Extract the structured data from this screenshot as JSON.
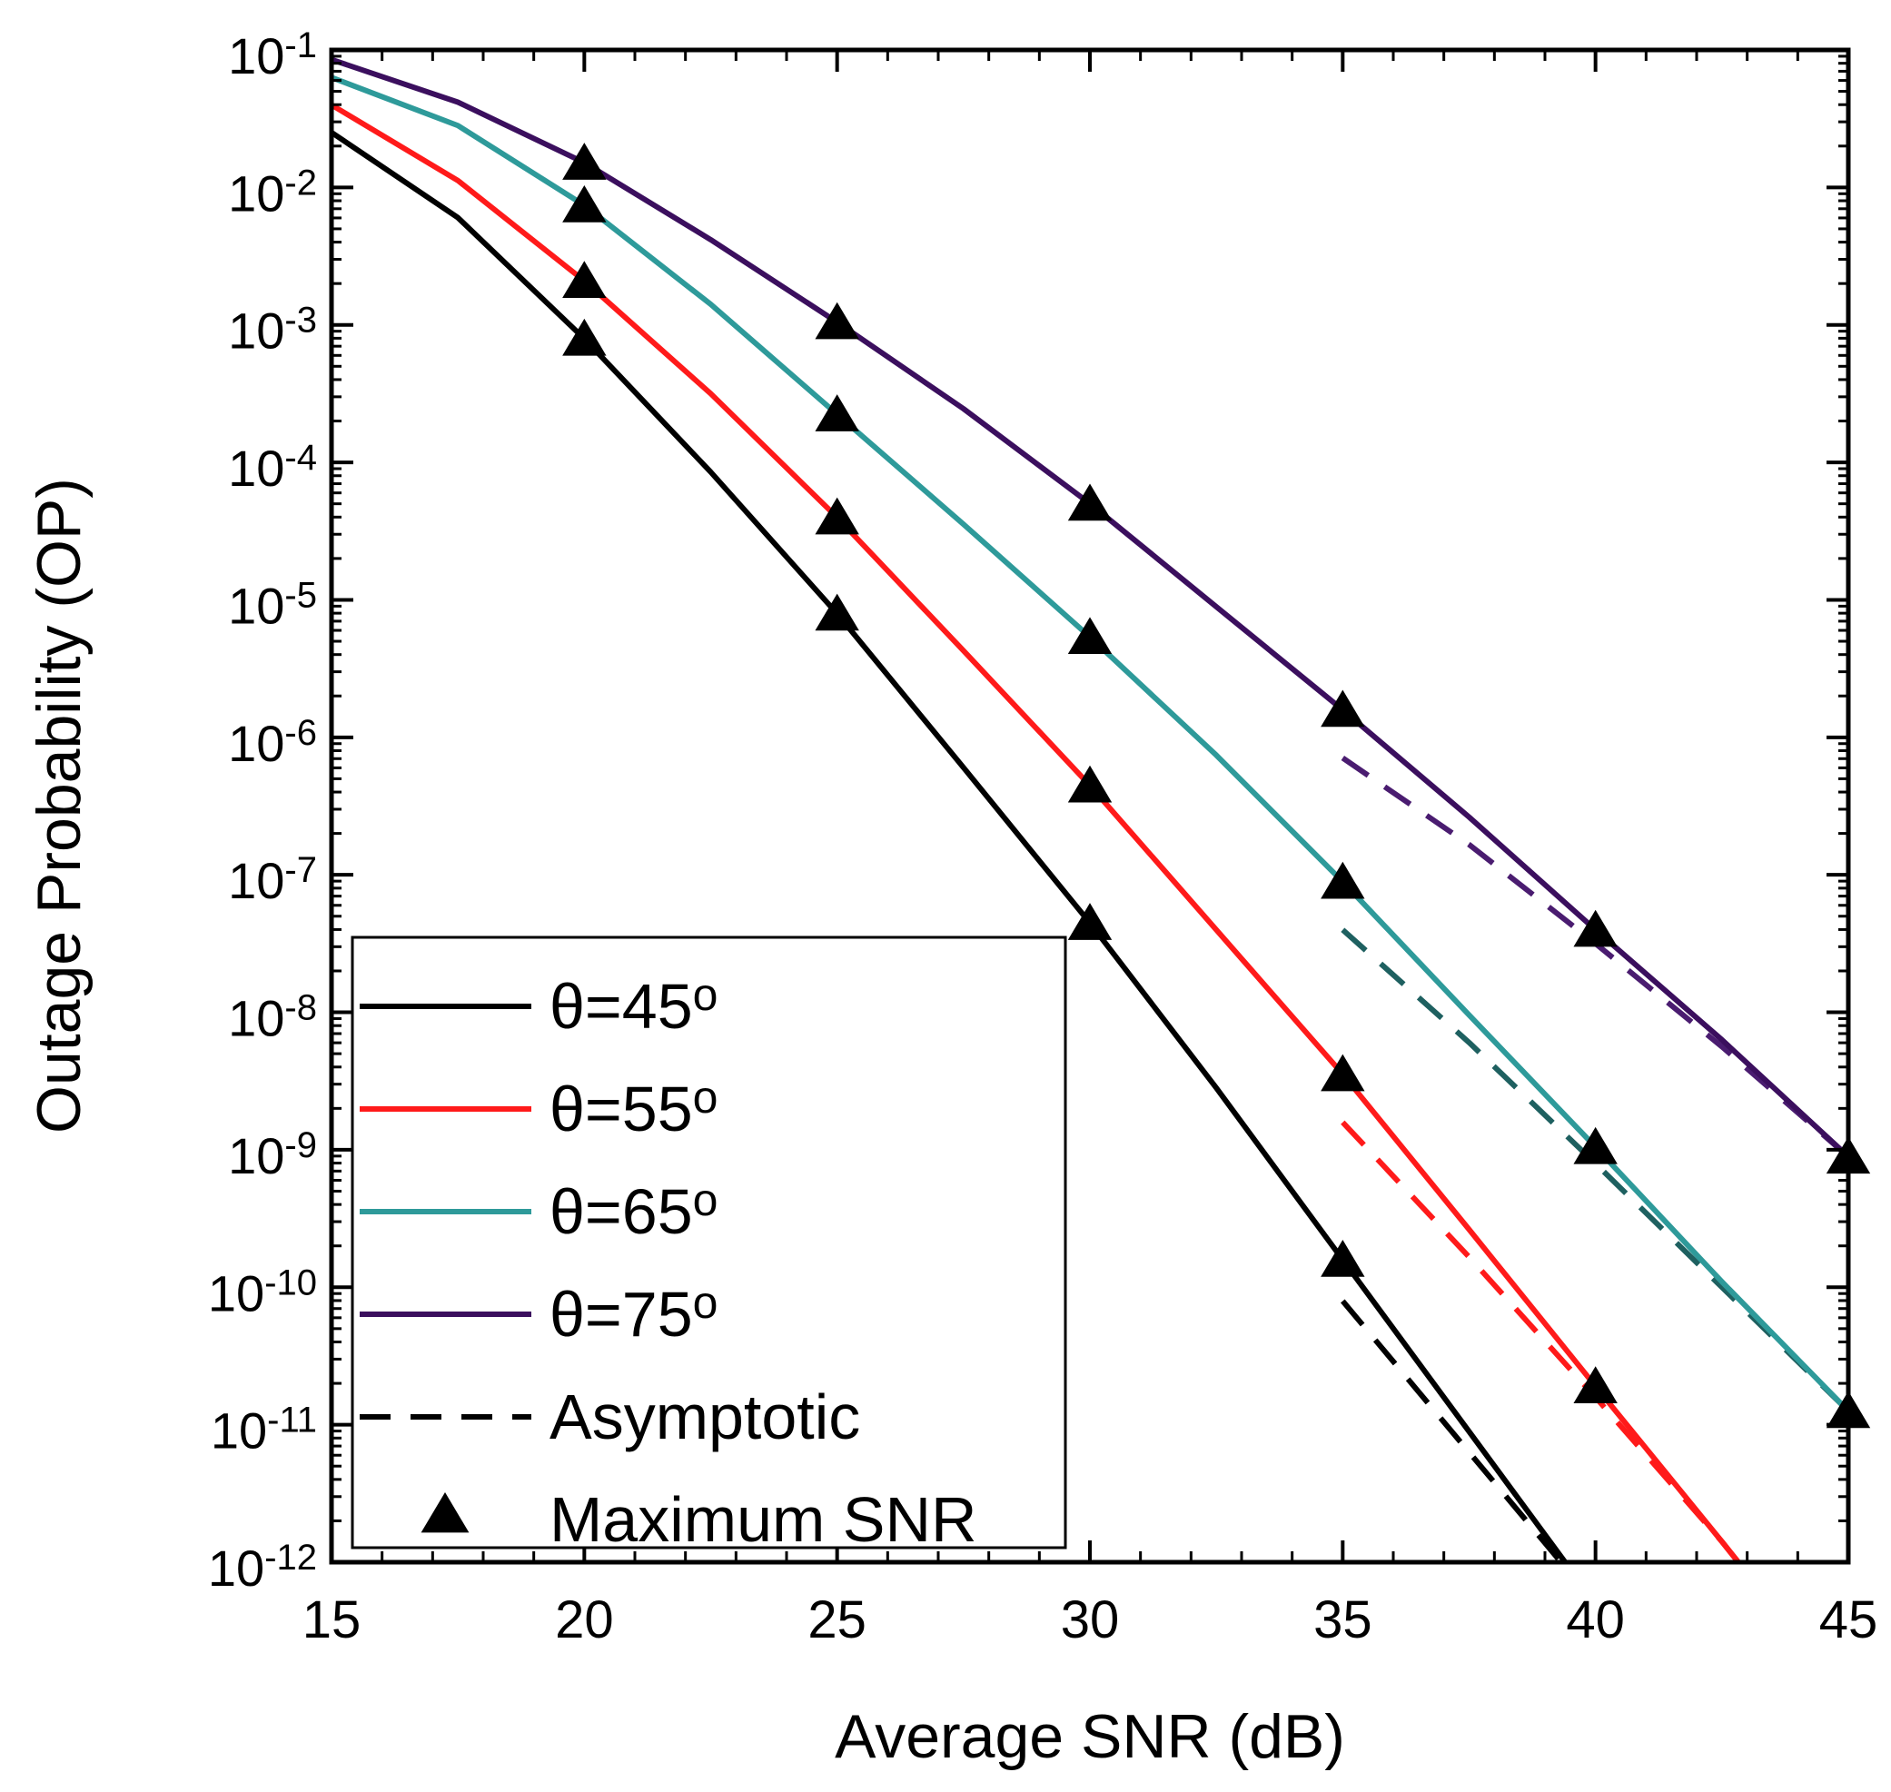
{
  "chart_data": {
    "type": "line",
    "title": "",
    "xlabel": "Average SNR (dB)",
    "ylabel": "Outage Probability (OP)",
    "xlim": [
      15,
      45
    ],
    "ylim_log10": [
      -12,
      -1
    ],
    "y_scale": "log",
    "x_ticks": [
      15,
      20,
      25,
      30,
      35,
      40,
      45
    ],
    "x_tick_labels": [
      "15",
      "20",
      "25",
      "30",
      "35",
      "40",
      "45"
    ],
    "y_ticks_exponent": [
      -1,
      -2,
      -3,
      -4,
      -5,
      -6,
      -7,
      -8,
      -9,
      -10,
      -11,
      -12
    ],
    "y_tick_base": "10",
    "y_tick_exponent_labels": [
      "-1",
      "-2",
      "-3",
      "-4",
      "-5",
      "-6",
      "-7",
      "-8",
      "-9",
      "-10",
      "-11",
      "-12"
    ],
    "grid": false,
    "legend_position": "bottom-left",
    "legend": [
      {
        "label": "θ=45",
        "sup": "o",
        "style": "solid",
        "color": "#000000"
      },
      {
        "label": "θ=55",
        "sup": "o",
        "style": "solid",
        "color": "#ff1a1a"
      },
      {
        "label": "θ=65",
        "sup": "o",
        "style": "solid",
        "color": "#2e9a9a"
      },
      {
        "label": "θ=75",
        "sup": "o",
        "style": "solid",
        "color": "#3b0f5e"
      },
      {
        "label": "Asymptotic",
        "style": "dashed",
        "color": "#000000"
      },
      {
        "label": "Maximum SNR",
        "style": "marker",
        "color": "#000000"
      }
    ],
    "series": [
      {
        "name": "θ=45°",
        "color": "#000000",
        "x": [
          15,
          17.5,
          20,
          22.5,
          25,
          27.5,
          30,
          32.5,
          35,
          37.5,
          40
        ],
        "log10_y": [
          -1.6,
          -2.22,
          -3.1,
          -4.07,
          -5.1,
          -6.22,
          -7.35,
          -8.55,
          -9.8,
          -11.05,
          -12.3
        ],
        "markers_x": [
          20,
          25,
          30,
          35
        ],
        "markers_log10_y": [
          -3.1,
          -5.1,
          -7.35,
          -9.8
        ]
      },
      {
        "name": "θ=55°",
        "color": "#ff1a1a",
        "x": [
          15,
          17.5,
          20,
          22.5,
          25,
          27.5,
          30,
          32.5,
          35,
          37.5,
          40,
          42.5,
          43
        ],
        "log10_y": [
          -1.4,
          -1.95,
          -2.68,
          -3.5,
          -4.4,
          -5.37,
          -6.35,
          -7.4,
          -8.45,
          -9.58,
          -10.72,
          -11.85,
          -12.08
        ],
        "markers_x": [
          20,
          25,
          30,
          35,
          40
        ],
        "markers_log10_y": [
          -2.68,
          -4.4,
          -6.35,
          -8.45,
          -10.72
        ]
      },
      {
        "name": "θ=65°",
        "color": "#2e9a9a",
        "x": [
          15,
          17.5,
          20,
          22.5,
          25,
          27.5,
          30,
          32.5,
          35,
          37.5,
          40,
          42.5,
          45
        ],
        "log10_y": [
          -1.2,
          -1.55,
          -2.13,
          -2.85,
          -3.65,
          -4.45,
          -5.27,
          -6.13,
          -7.05,
          -8.02,
          -8.98,
          -9.96,
          -10.9
        ],
        "markers_x": [
          20,
          25,
          30,
          35,
          40,
          45
        ],
        "markers_log10_y": [
          -2.13,
          -3.65,
          -5.27,
          -7.05,
          -8.98,
          -10.9
        ]
      },
      {
        "name": "θ=75°",
        "color": "#3b0f5e",
        "x": [
          15,
          17.5,
          20,
          22.5,
          25,
          27.5,
          30,
          32.5,
          35,
          37.5,
          40,
          42.5,
          45
        ],
        "log10_y": [
          -1.07,
          -1.38,
          -1.82,
          -2.38,
          -2.98,
          -3.61,
          -4.3,
          -5.05,
          -5.8,
          -6.58,
          -7.4,
          -8.2,
          -9.05
        ],
        "markers_x": [
          20,
          25,
          30,
          35,
          40,
          45
        ],
        "markers_log10_y": [
          -1.82,
          -2.98,
          -4.3,
          -5.8,
          -7.4,
          -9.05
        ]
      }
    ],
    "asymptotic": [
      {
        "name": "Asymptotic θ=45°",
        "color": "#000000",
        "x": [
          35,
          37.5,
          40
        ],
        "log10_y": [
          -10.1,
          -11.2,
          -12.3
        ]
      },
      {
        "name": "Asymptotic θ=55°",
        "color": "#ff1a1a",
        "x": [
          35,
          37.5,
          40,
          42.5,
          43
        ],
        "log10_y": [
          -8.8,
          -9.78,
          -10.8,
          -11.85,
          -12.08
        ]
      },
      {
        "name": "Asymptotic θ=65°",
        "color": "#1e6060",
        "x": [
          35,
          37.5,
          40,
          42.5,
          45
        ],
        "log10_y": [
          -7.4,
          -8.22,
          -9.1,
          -10.0,
          -10.9
        ]
      },
      {
        "name": "Asymptotic θ=75°",
        "color": "#4a1c70",
        "x": [
          35,
          37.5,
          40,
          42.5,
          45
        ],
        "log10_y": [
          -6.15,
          -6.78,
          -7.5,
          -8.25,
          -9.05
        ]
      }
    ]
  }
}
